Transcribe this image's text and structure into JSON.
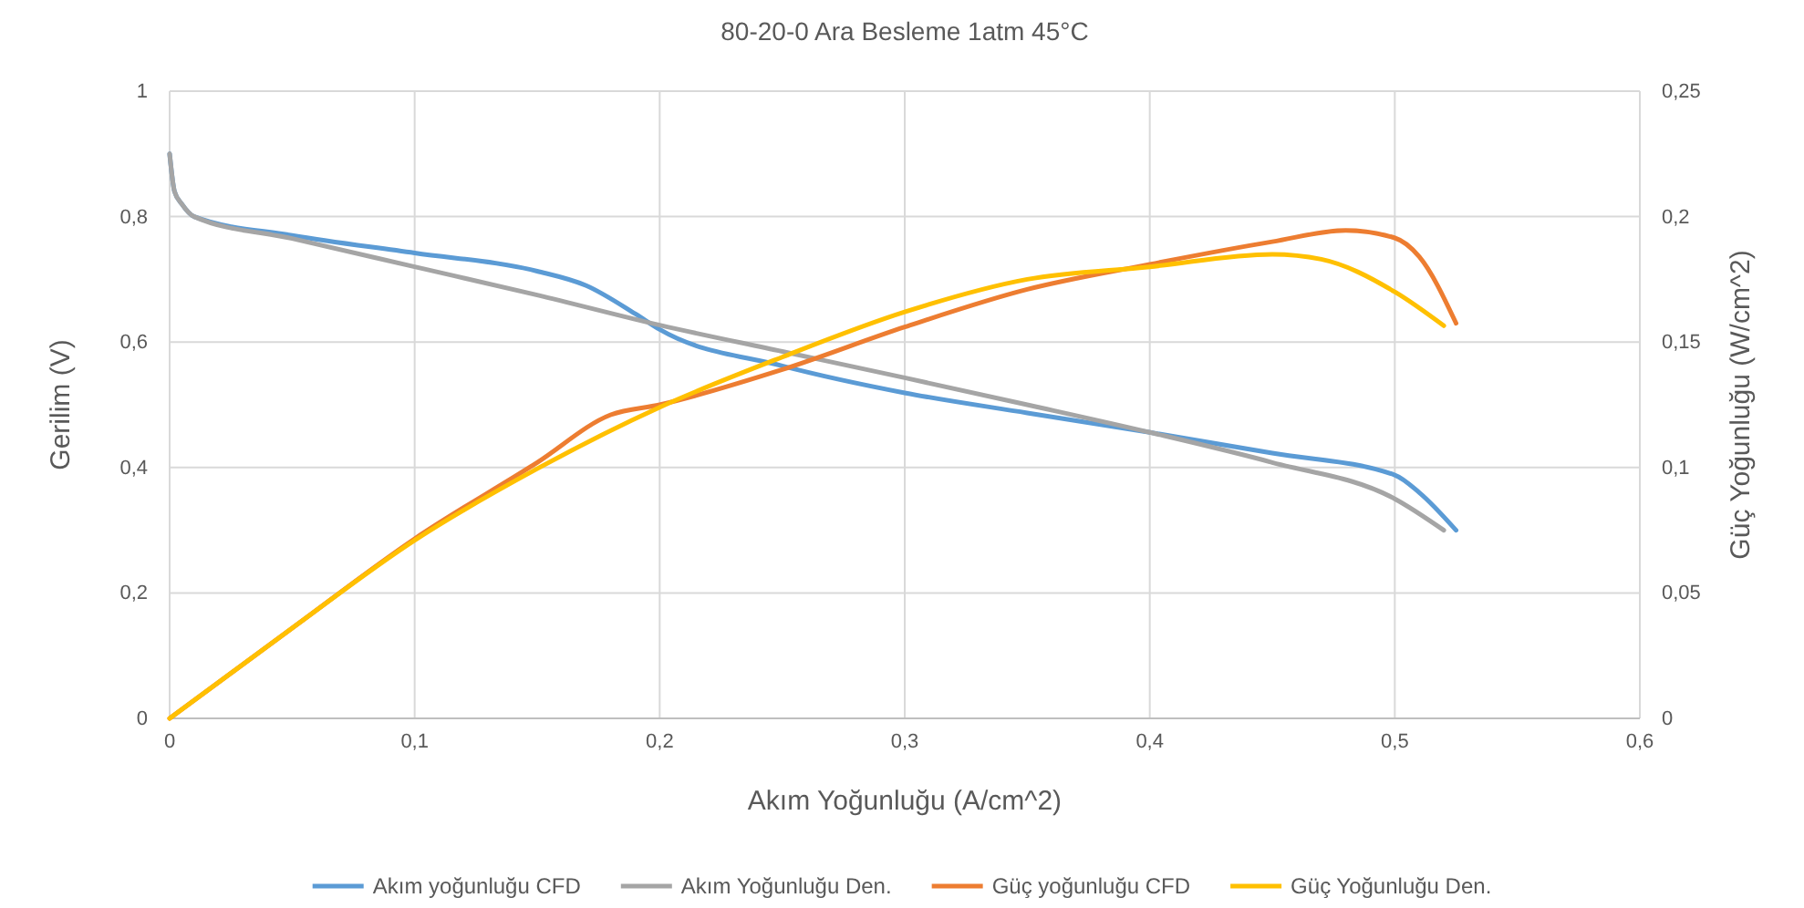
{
  "chart_data": {
    "type": "line",
    "title": "80-20-0 Ara Besleme 1atm 45°C",
    "xlabel": "Akım Yoğunluğu (A/cm^2)",
    "ylabel": "Gerilim (V)",
    "y2label": "Güç Yoğunluğu (W/cm^2)",
    "xlim": [
      0,
      0.6
    ],
    "xticks": [
      0,
      {
        "value": 0.1,
        "label": "0,1"
      },
      {
        "value": 0.2,
        "label": "0,2"
      },
      {
        "value": 0.3,
        "label": "0,3"
      },
      {
        "value": 0.4,
        "label": "0,4"
      },
      {
        "value": 0.5,
        "label": "0,5"
      },
      {
        "value": 0.6,
        "label": "0,6"
      }
    ],
    "ylim": [
      0,
      1
    ],
    "yticks": [
      0,
      {
        "value": 0.2,
        "label": "0,2"
      },
      {
        "value": 0.4,
        "label": "0,4"
      },
      {
        "value": 0.6,
        "label": "0,6"
      },
      {
        "value": 0.8,
        "label": "0,8"
      },
      1
    ],
    "y2lim": [
      0,
      0.25
    ],
    "y2ticks": [
      0,
      {
        "value": 0.05,
        "label": "0,05"
      },
      {
        "value": 0.1,
        "label": "0,1"
      },
      {
        "value": 0.15,
        "label": "0,15"
      },
      {
        "value": 0.2,
        "label": "0,2"
      },
      {
        "value": 0.25,
        "label": "0,25"
      }
    ],
    "grid": true,
    "legend": "bottom",
    "marker": "none",
    "line_style": "solid",
    "series": [
      {
        "name": "Akım yoğunluğu CFD",
        "color": "#5b9bd5",
        "x": [
          0,
          0.002,
          0.005,
          0.01,
          0.05,
          0.1,
          0.15,
          0.17,
          0.19,
          0.2,
          0.25,
          0.3,
          0.35,
          0.4,
          0.45,
          0.5,
          0.51,
          0.525
        ],
        "values": [
          0.9,
          0.84,
          0.82,
          0.8,
          0.77,
          0.742,
          0.713,
          0.69,
          0.645,
          0.62,
          0.562,
          0.519,
          0.487,
          0.456,
          0.423,
          0.388,
          0.36,
          0.3
        ]
      },
      {
        "name": "Akım Yoğunluğu Den.",
        "color": "#a5a5a5",
        "x": [
          0,
          0.002,
          0.005,
          0.01,
          0.05,
          0.1,
          0.15,
          0.2,
          0.25,
          0.3,
          0.35,
          0.4,
          0.45,
          0.5,
          0.52
        ],
        "values": [
          0.9,
          0.84,
          0.82,
          0.8,
          0.765,
          0.72,
          0.675,
          0.627,
          0.585,
          0.543,
          0.5,
          0.456,
          0.408,
          0.35,
          0.3
        ]
      },
      {
        "name": "Güç yoğunluğu CFD",
        "color": "#ed7d31",
        "axis": "y2",
        "x": [
          0,
          0.05,
          0.1,
          0.15,
          0.18,
          0.2,
          0.25,
          0.3,
          0.35,
          0.4,
          0.45,
          0.48,
          0.5,
          0.51,
          0.525
        ],
        "values": [
          0,
          0.036,
          0.0716,
          0.102,
          0.121,
          0.125,
          0.139,
          0.156,
          0.171,
          0.181,
          0.19,
          0.1945,
          0.1915,
          0.184,
          0.1575
        ]
      },
      {
        "name": "Güç Yoğunluğu Den.",
        "color": "#ffc000",
        "axis": "y2",
        "x": [
          0,
          0.05,
          0.1,
          0.15,
          0.2,
          0.25,
          0.3,
          0.35,
          0.4,
          0.45,
          0.47,
          0.5,
          0.52
        ],
        "values": [
          0,
          0.036,
          0.071,
          0.0995,
          0.124,
          0.144,
          0.162,
          0.175,
          0.18,
          0.185,
          0.183,
          0.17,
          0.1565
        ]
      }
    ]
  }
}
